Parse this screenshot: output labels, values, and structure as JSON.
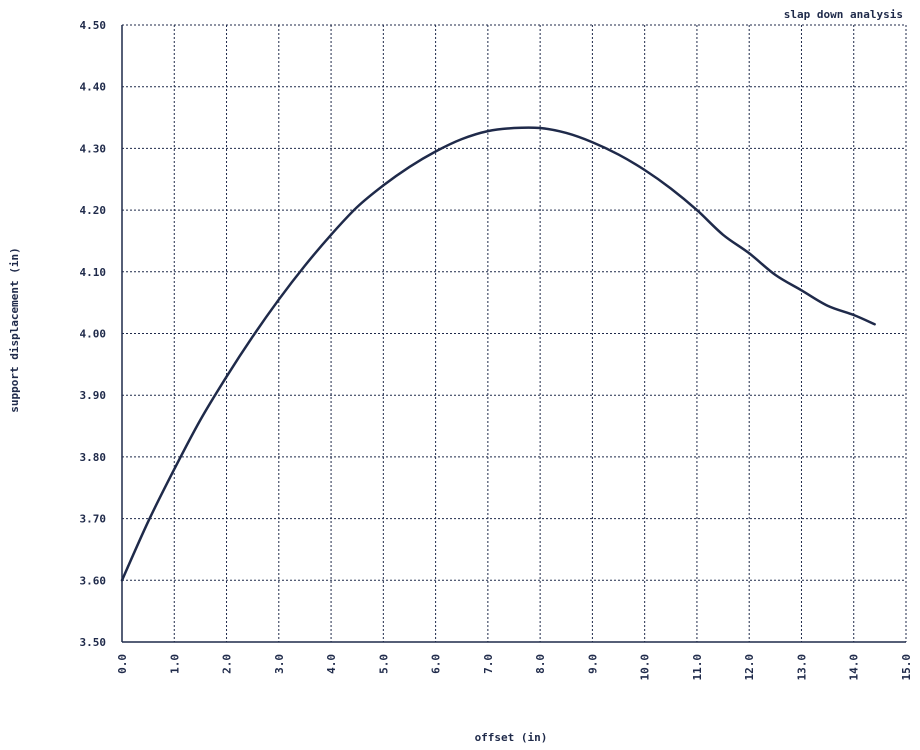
{
  "chart_data": {
    "type": "line",
    "title": "slap down analysis",
    "xlabel": "offset (in)",
    "ylabel": "support displacement (in)",
    "xlim": [
      0,
      15
    ],
    "ylim": [
      3.5,
      4.5
    ],
    "grid": true,
    "x_ticks": [
      "0.0",
      "1.0",
      "2.0",
      "3.0",
      "4.0",
      "5.0",
      "6.0",
      "7.0",
      "8.0",
      "9.0",
      "10.0",
      "11.0",
      "12.0",
      "13.0",
      "14.0",
      "15.0"
    ],
    "y_ticks": [
      "3.50",
      "3.60",
      "3.70",
      "3.80",
      "3.90",
      "4.00",
      "4.10",
      "4.20",
      "4.30",
      "4.40",
      "4.50"
    ],
    "series": [
      {
        "color": "#1f2a4a",
        "x": [
          0,
          0.5,
          1,
          1.5,
          2,
          2.5,
          3,
          3.5,
          4,
          4.5,
          5,
          5.5,
          6,
          6.5,
          7,
          7.5,
          8,
          8.5,
          9,
          9.5,
          10,
          10.5,
          11,
          11.5,
          12,
          12.5,
          13,
          13.5,
          14,
          14.4
        ],
        "y": [
          3.6,
          3.695,
          3.78,
          3.86,
          3.93,
          3.995,
          4.055,
          4.11,
          4.16,
          4.205,
          4.24,
          4.27,
          4.295,
          4.315,
          4.328,
          4.333,
          4.333,
          4.325,
          4.31,
          4.29,
          4.265,
          4.235,
          4.2,
          4.16,
          4.13,
          4.095,
          4.07,
          4.045,
          4.03,
          4.015
        ]
      }
    ]
  }
}
